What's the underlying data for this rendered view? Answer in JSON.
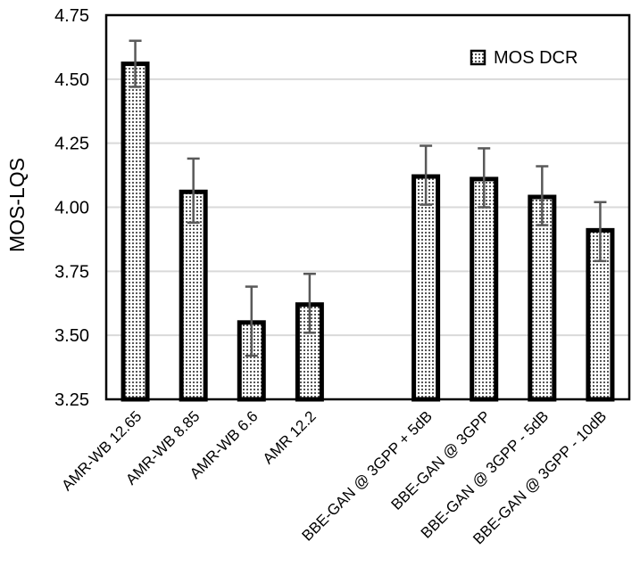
{
  "chart_data": {
    "type": "bar",
    "title": "",
    "xlabel": "",
    "ylabel": "MOS-LQS",
    "ylim": [
      3.25,
      4.75
    ],
    "yticks": [
      "3.25",
      "3.50",
      "3.75",
      "4.00",
      "4.25",
      "4.50",
      "4.75"
    ],
    "grid": true,
    "legend": {
      "entries": [
        "MOS DCR"
      ],
      "placement": "top-right"
    },
    "categories": [
      "AMR-WB 12.65",
      "AMR-WB 8.85",
      "AMR-WB 6.6",
      "AMR 12.2",
      "",
      "BBE-GAN @ 3GPP + 5dB",
      "BBE-GAN @ 3GPP",
      "BBE-GAN @ 3GPP - 5dB",
      "BBE-GAN @ 3GPP - 10dB"
    ],
    "series": [
      {
        "name": "MOS DCR",
        "values": [
          4.56,
          4.06,
          3.55,
          3.62,
          null,
          4.12,
          4.11,
          4.04,
          3.91
        ],
        "error_low": [
          4.47,
          3.94,
          3.42,
          3.51,
          null,
          4.01,
          4.0,
          3.93,
          3.79
        ],
        "error_high": [
          4.65,
          4.19,
          3.69,
          3.74,
          null,
          4.24,
          4.23,
          4.16,
          4.02
        ]
      }
    ],
    "colors": {
      "bar_border": "#000000",
      "bar_fill": "#ffffff",
      "bar_dot": "#555555",
      "grid": "#d9d9d9",
      "error_bar": "#595959"
    }
  }
}
